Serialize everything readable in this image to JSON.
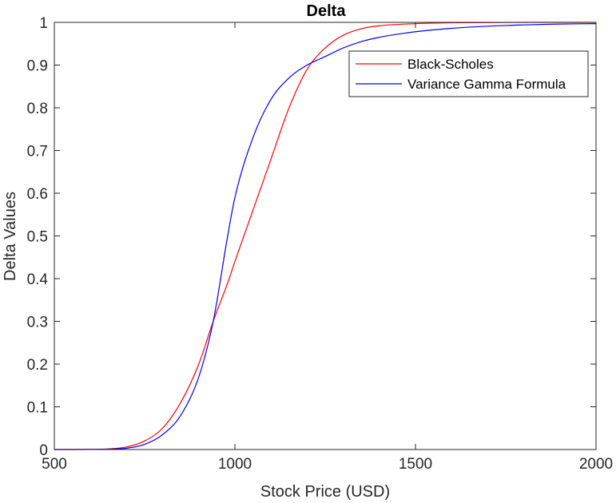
{
  "chart_data": {
    "type": "line",
    "title": "Delta",
    "xlabel": "Stock Price (USD)",
    "ylabel": "Delta Values",
    "xlim": [
      500,
      2000
    ],
    "ylim": [
      0,
      1
    ],
    "xticks": [
      500,
      1000,
      1500,
      2000
    ],
    "yticks": [
      0,
      0.1,
      0.2,
      0.3,
      0.4,
      0.5,
      0.6,
      0.7,
      0.8,
      0.9,
      1
    ],
    "grid": false,
    "legend_position": "top-right",
    "series": [
      {
        "name": "Black-Scholes",
        "color": "#ff0000",
        "x": [
          500,
          600,
          650,
          700,
          750,
          800,
          850,
          900,
          940,
          980,
          1000,
          1050,
          1100,
          1150,
          1200,
          1250,
          1300,
          1350,
          1400,
          1500,
          1600,
          1700,
          1800,
          1900,
          2000
        ],
        "y": [
          0,
          0.0003,
          0.0015,
          0.006,
          0.02,
          0.05,
          0.11,
          0.2,
          0.3,
          0.39,
          0.44,
          0.56,
          0.68,
          0.8,
          0.89,
          0.94,
          0.97,
          0.985,
          0.992,
          0.997,
          0.999,
          0.9995,
          1.0,
          1.0,
          1.0
        ]
      },
      {
        "name": "Variance Gamma Formula",
        "color": "#0000ff",
        "x": [
          500,
          600,
          650,
          700,
          750,
          800,
          850,
          900,
          940,
          980,
          1000,
          1050,
          1100,
          1150,
          1200,
          1250,
          1300,
          1350,
          1400,
          1500,
          1600,
          1700,
          1800,
          1900,
          2000
        ],
        "y": [
          0,
          0.0002,
          0.0008,
          0.003,
          0.012,
          0.035,
          0.08,
          0.17,
          0.3,
          0.5,
          0.59,
          0.73,
          0.82,
          0.87,
          0.9,
          0.92,
          0.94,
          0.955,
          0.965,
          0.978,
          0.986,
          0.991,
          0.994,
          0.996,
          0.997
        ]
      }
    ]
  }
}
